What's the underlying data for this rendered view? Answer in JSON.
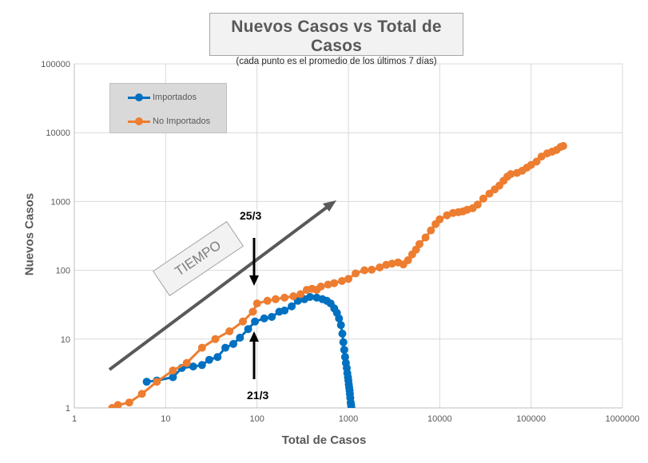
{
  "chart_data": {
    "type": "scatter",
    "title": "Nuevos Casos vs Total de Casos",
    "subtitle": "(cada punto es el promedio de los últimos 7 días)",
    "xlabel": "Total de Casos",
    "ylabel": "Nuevos Casos",
    "xscale": "log",
    "yscale": "log",
    "xlim": [
      1,
      1000000
    ],
    "ylim": [
      1,
      100000
    ],
    "x_ticks": [
      "1",
      "10",
      "100",
      "1000",
      "10000",
      "100000",
      "1000000"
    ],
    "y_ticks": [
      "1",
      "10",
      "100",
      "1000",
      "10000",
      "100000"
    ],
    "grid": true,
    "legend_position": "top-left",
    "series": [
      {
        "name": "Importados",
        "color": "#0070c0",
        "points": [
          [
            6.2,
            2.4
          ],
          [
            8,
            2.5
          ],
          [
            12,
            2.8
          ],
          [
            15,
            3.8
          ],
          [
            20,
            4.0
          ],
          [
            25,
            4.2
          ],
          [
            30,
            5.0
          ],
          [
            37,
            5.5
          ],
          [
            45,
            7.5
          ],
          [
            55,
            8.5
          ],
          [
            65,
            10.5
          ],
          [
            80,
            14
          ],
          [
            95,
            18
          ],
          [
            120,
            20
          ],
          [
            145,
            21
          ],
          [
            175,
            25
          ],
          [
            200,
            26
          ],
          [
            240,
            30
          ],
          [
            280,
            36
          ],
          [
            330,
            38
          ],
          [
            380,
            41
          ],
          [
            450,
            40
          ],
          [
            520,
            38
          ],
          [
            580,
            36
          ],
          [
            640,
            33
          ],
          [
            700,
            28
          ],
          [
            750,
            24
          ],
          [
            790,
            20
          ],
          [
            830,
            16
          ],
          [
            860,
            12
          ],
          [
            880,
            9
          ],
          [
            900,
            7
          ],
          [
            920,
            5.5
          ],
          [
            940,
            4.5
          ],
          [
            960,
            3.8
          ],
          [
            975,
            3.2
          ],
          [
            990,
            2.8
          ],
          [
            1000,
            2.5
          ],
          [
            1010,
            2.2
          ],
          [
            1020,
            2.0
          ],
          [
            1030,
            1.8
          ],
          [
            1040,
            1.6
          ],
          [
            1050,
            1.4
          ],
          [
            1060,
            1.2
          ],
          [
            1070,
            1.1
          ],
          [
            1080,
            1.0
          ]
        ]
      },
      {
        "name": "No Importados",
        "color": "#ed7d31",
        "points": [
          [
            2.6,
            1.0
          ],
          [
            3,
            1.1
          ],
          [
            4,
            1.2
          ],
          [
            5.5,
            1.6
          ],
          [
            8,
            2.4
          ],
          [
            12,
            3.5
          ],
          [
            17,
            4.5
          ],
          [
            25,
            7.5
          ],
          [
            35,
            10
          ],
          [
            50,
            13
          ],
          [
            70,
            18
          ],
          [
            90,
            25
          ],
          [
            100,
            33
          ],
          [
            130,
            36
          ],
          [
            160,
            38
          ],
          [
            200,
            40
          ],
          [
            250,
            42
          ],
          [
            300,
            45
          ],
          [
            350,
            52
          ],
          [
            400,
            54
          ],
          [
            450,
            52
          ],
          [
            500,
            58
          ],
          [
            600,
            62
          ],
          [
            700,
            65
          ],
          [
            850,
            70
          ],
          [
            1000,
            75
          ],
          [
            1200,
            90
          ],
          [
            1500,
            100
          ],
          [
            1800,
            102
          ],
          [
            2200,
            110
          ],
          [
            2600,
            120
          ],
          [
            3000,
            125
          ],
          [
            3500,
            130
          ],
          [
            4000,
            122
          ],
          [
            4500,
            140
          ],
          [
            5000,
            170
          ],
          [
            5500,
            200
          ],
          [
            6000,
            240
          ],
          [
            7000,
            300
          ],
          [
            8000,
            380
          ],
          [
            9000,
            470
          ],
          [
            10000,
            550
          ],
          [
            12000,
            630
          ],
          [
            14000,
            680
          ],
          [
            16000,
            700
          ],
          [
            18000,
            720
          ],
          [
            20000,
            760
          ],
          [
            23000,
            800
          ],
          [
            26000,
            900
          ],
          [
            30000,
            1100
          ],
          [
            35000,
            1300
          ],
          [
            40000,
            1500
          ],
          [
            45000,
            1700
          ],
          [
            50000,
            2000
          ],
          [
            55000,
            2300
          ],
          [
            60000,
            2500
          ],
          [
            70000,
            2600
          ],
          [
            80000,
            2800
          ],
          [
            90000,
            3100
          ],
          [
            100000,
            3400
          ],
          [
            115000,
            3800
          ],
          [
            130000,
            4500
          ],
          [
            150000,
            5000
          ],
          [
            170000,
            5300
          ],
          [
            190000,
            5600
          ],
          [
            210000,
            6200
          ],
          [
            225000,
            6400
          ]
        ]
      }
    ],
    "annotations": [
      {
        "text": "TIEMPO",
        "type": "box"
      },
      {
        "text": "25/3",
        "type": "arrow",
        "target": [
          100,
          33
        ]
      },
      {
        "text": "21/3",
        "type": "arrow",
        "target": [
          95,
          18
        ]
      }
    ]
  }
}
